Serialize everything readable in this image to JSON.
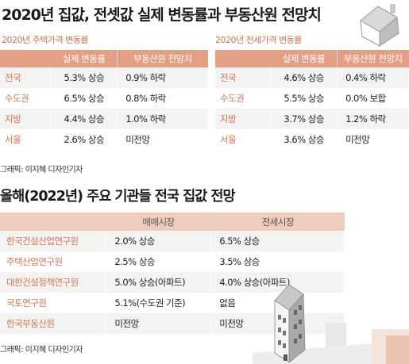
{
  "section1": {
    "title": "2020년 집값, 전셋값 실제 변동률과 부동산원 전망치",
    "left": {
      "subtitle": "2020년 주택가격 변동률",
      "headers": [
        "",
        "실제 변동률",
        "부동산원 전망치"
      ],
      "rows": [
        {
          "region": "전국",
          "actual": "5.3% 상승",
          "forecast": "0.9% 하락"
        },
        {
          "region": "수도권",
          "actual": "6.5% 상승",
          "forecast": "0.8% 하락"
        },
        {
          "region": "지방",
          "actual": "4.4% 상승",
          "forecast": "1.0% 하락"
        },
        {
          "region": "서울",
          "actual": "2.6% 상승",
          "forecast": "미전망"
        }
      ]
    },
    "right": {
      "subtitle": "2020년 전세가격 변동률",
      "headers": [
        "",
        "실제 변동률",
        "부동산원 전망치"
      ],
      "rows": [
        {
          "region": "전국",
          "actual": "4.6% 상승",
          "forecast": "0.4% 하락"
        },
        {
          "region": "수도권",
          "actual": "5.5% 상승",
          "forecast": "0.0% 보합"
        },
        {
          "region": "지방",
          "actual": "3.7% 상승",
          "forecast": "1.2% 하락"
        },
        {
          "region": "서울",
          "actual": "3.6% 상승",
          "forecast": "미전망"
        }
      ]
    },
    "credit": "그래픽: 이지혜 디자인기자"
  },
  "section2": {
    "title": "올해(2022년) 주요 기관들 전국 집값 전망",
    "headers": [
      "",
      "매매시장",
      "전세시장"
    ],
    "rows": [
      {
        "institution": "한국건설산업연구원",
        "sale": "2.0% 상승",
        "jeonse": "6.5% 상승"
      },
      {
        "institution": "주택산업연구원",
        "sale": "2.5% 상승",
        "jeonse": "3.5% 상승"
      },
      {
        "institution": "대한건설정책연구원",
        "sale": "5.0% 상승(아파트)",
        "jeonse": "4.0% 상승(아파트)"
      },
      {
        "institution": "국토연구원",
        "sale": "5.1%(수도권 기준)",
        "jeonse": "없음"
      },
      {
        "institution": "한국부동산원",
        "sale": "미전망",
        "jeonse": "미전망"
      }
    ],
    "credit": "그래픽: 이지혜 디자인기자"
  },
  "colors": {
    "header_fill": "#e39e83",
    "header_fill_light": "#f0ccbd",
    "label_text": "#d07555",
    "stripe": "#f3f3f2"
  },
  "icons": [
    "house-illustration-icon",
    "apartment-building-illustration-icon"
  ]
}
